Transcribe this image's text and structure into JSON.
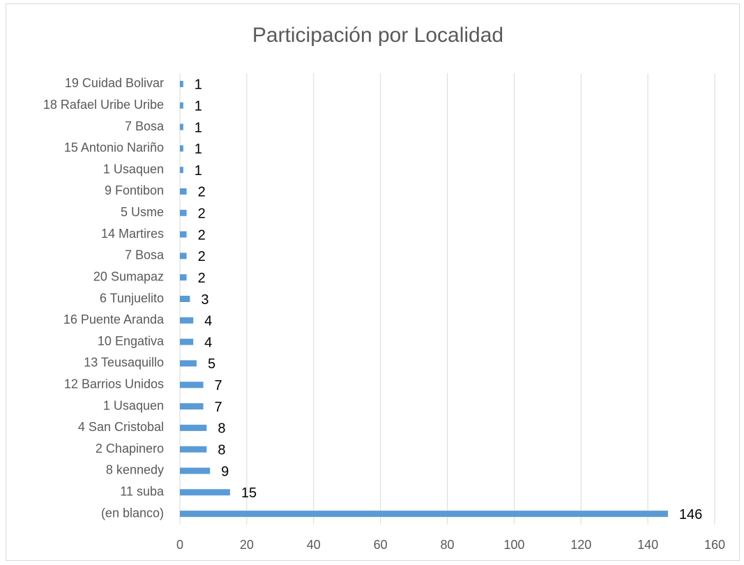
{
  "chart_data": {
    "type": "bar",
    "orientation": "horizontal",
    "title": "Participación por Localidad",
    "categories": [
      "19 Cuidad Bolivar",
      "18 Rafael Uribe Uribe",
      "7 Bosa",
      "15 Antonio Nariño",
      "1 Usaquen",
      "9 Fontibon",
      "5 Usme",
      "14 Martires",
      "7 Bosa",
      "20 Sumapaz",
      "6 Tunjuelito",
      "16 Puente Aranda",
      "10 Engativa",
      "13 Teusaquillo",
      "12 Barrios Unidos",
      "1 Usaquen",
      "4 San Cristobal",
      "2 Chapinero",
      "8 kennedy",
      "11 suba",
      "(en blanco)"
    ],
    "values": [
      1,
      1,
      1,
      1,
      1,
      2,
      2,
      2,
      2,
      2,
      3,
      4,
      4,
      5,
      7,
      7,
      8,
      8,
      9,
      15,
      146
    ],
    "color": "#5b9bd5",
    "xlim": [
      0,
      160
    ],
    "xticks": [
      0,
      20,
      40,
      60,
      80,
      100,
      120,
      140,
      160
    ],
    "grid": true
  }
}
